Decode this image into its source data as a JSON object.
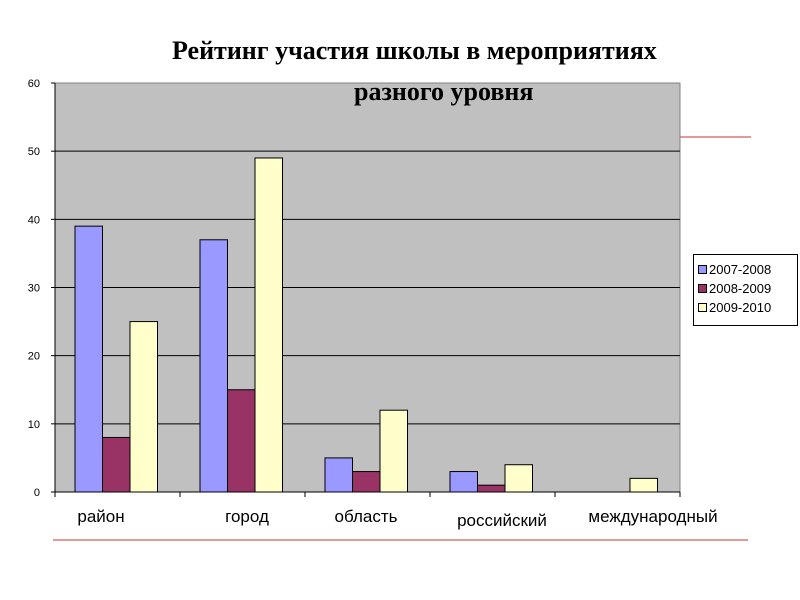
{
  "chart_data": {
    "type": "bar",
    "title_lines": [
      "Рейтинг участия  школы в мероприятиях",
      "разного уровня"
    ],
    "categories": [
      "район",
      "город",
      "область",
      "российский",
      "международный"
    ],
    "series": [
      {
        "name": "2007-2008",
        "color": "#9999ff",
        "values": [
          39,
          37,
          5,
          3,
          0
        ]
      },
      {
        "name": "2008-2009",
        "color": "#993366",
        "values": [
          8,
          15,
          3,
          1,
          0
        ]
      },
      {
        "name": "2009-2010",
        "color": "#ffffcc",
        "values": [
          25,
          49,
          12,
          4,
          2
        ]
      }
    ],
    "yticks": [
      "0",
      "10",
      "20",
      "30",
      "40",
      "50",
      "60"
    ],
    "ylim": [
      0,
      60
    ],
    "xlabel": "",
    "ylabel": "",
    "grid": true,
    "plot_background": "#c0c0c0",
    "legend_position": "right",
    "accent_line_color": "#cc0000"
  }
}
